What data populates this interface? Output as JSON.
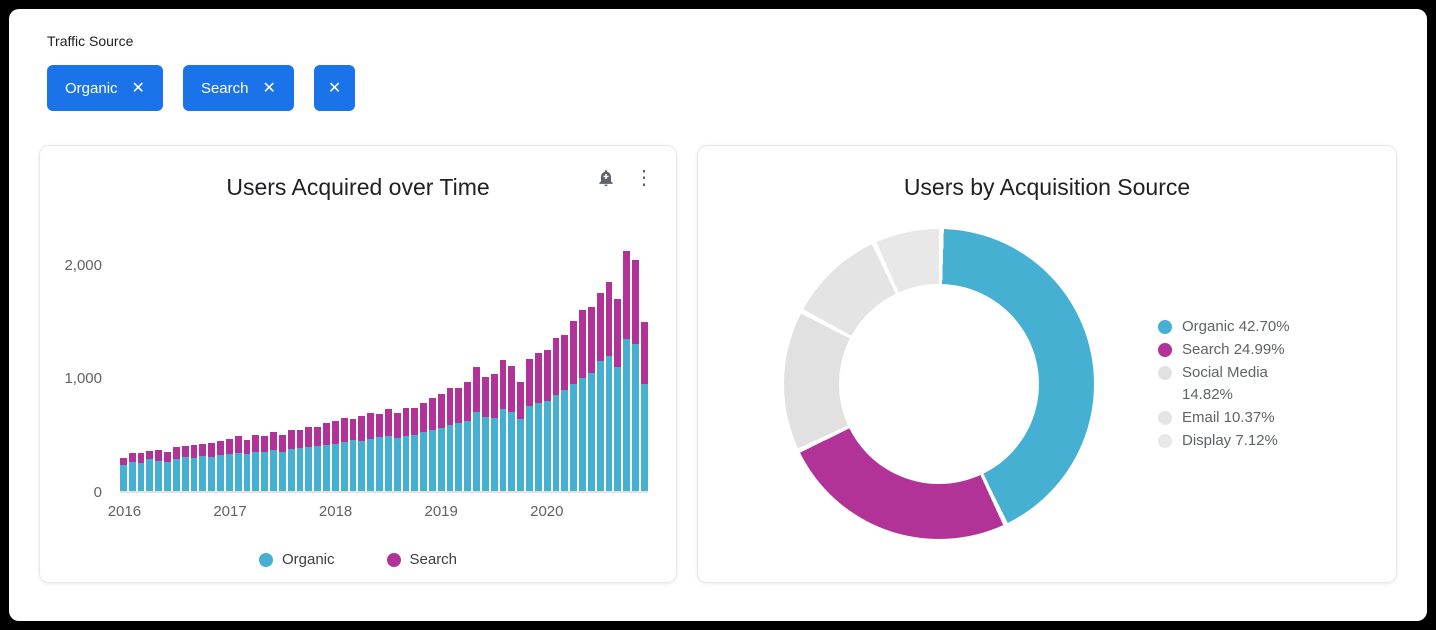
{
  "filter": {
    "label": "Traffic Source",
    "chips": [
      {
        "label": "Organic"
      },
      {
        "label": "Search"
      },
      {
        "label": ""
      }
    ],
    "chip_color": "#1a73e8"
  },
  "icons": {
    "close": "✕",
    "more_options": "⋮",
    "bell": "add-alert"
  },
  "chart_data": [
    {
      "type": "bar",
      "stacked": true,
      "title": "Users Acquired over Time",
      "xlabel": "",
      "ylabel": "",
      "ylim": [
        0,
        2200
      ],
      "grid": false,
      "legend_position": "bottom",
      "x_years": [
        "2016",
        "2017",
        "2018",
        "2019",
        "2020"
      ],
      "months_per_year": 12,
      "series": [
        {
          "name": "Organic",
          "color": "#45b0d2",
          "values": [
            230,
            255,
            245,
            285,
            265,
            260,
            280,
            300,
            290,
            310,
            300,
            320,
            330,
            340,
            330,
            350,
            345,
            360,
            350,
            370,
            380,
            390,
            400,
            410,
            420,
            435,
            450,
            440,
            460,
            475,
            485,
            470,
            490,
            500,
            520,
            540,
            560,
            585,
            605,
            625,
            700,
            660,
            650,
            730,
            700,
            640,
            750,
            780,
            800,
            850,
            900,
            950,
            1000,
            1050,
            1150,
            1200,
            1100,
            1350,
            1300,
            950
          ]
        },
        {
          "name": "Search",
          "color": "#b13397",
          "values": [
            60,
            80,
            90,
            70,
            100,
            90,
            110,
            100,
            120,
            110,
            130,
            120,
            130,
            145,
            120,
            150,
            140,
            160,
            150,
            170,
            160,
            180,
            170,
            190,
            200,
            210,
            190,
            225,
            235,
            210,
            245,
            220,
            250,
            240,
            260,
            285,
            300,
            325,
            310,
            345,
            400,
            350,
            385,
            430,
            405,
            330,
            425,
            445,
            450,
            505,
            480,
            555,
            605,
            580,
            605,
            655,
            600,
            780,
            750,
            550
          ]
        }
      ],
      "yticks": [
        {
          "label": "0",
          "value": 0
        },
        {
          "label": "1,000",
          "value": 1000
        },
        {
          "label": "2,000",
          "value": 2000
        }
      ]
    },
    {
      "type": "pie",
      "variant": "donut",
      "title": "Users by Acquisition Source",
      "legend_position": "right",
      "start_angle_deg": 0,
      "segments": [
        {
          "label": "Organic",
          "value": 42.7,
          "display": "42.70%",
          "color": "#45b0d2"
        },
        {
          "label": "Search",
          "value": 24.99,
          "display": "24.99%",
          "color": "#b13397"
        },
        {
          "label": "Social Media",
          "value": 14.82,
          "display": "14.82%",
          "color": "#e1e1e1"
        },
        {
          "label": "Email",
          "value": 10.37,
          "display": "10.37%",
          "color": "#e4e4e4"
        },
        {
          "label": "Display",
          "value": 7.12,
          "display": "7.12%",
          "color": "#e8e8e8"
        }
      ]
    }
  ]
}
